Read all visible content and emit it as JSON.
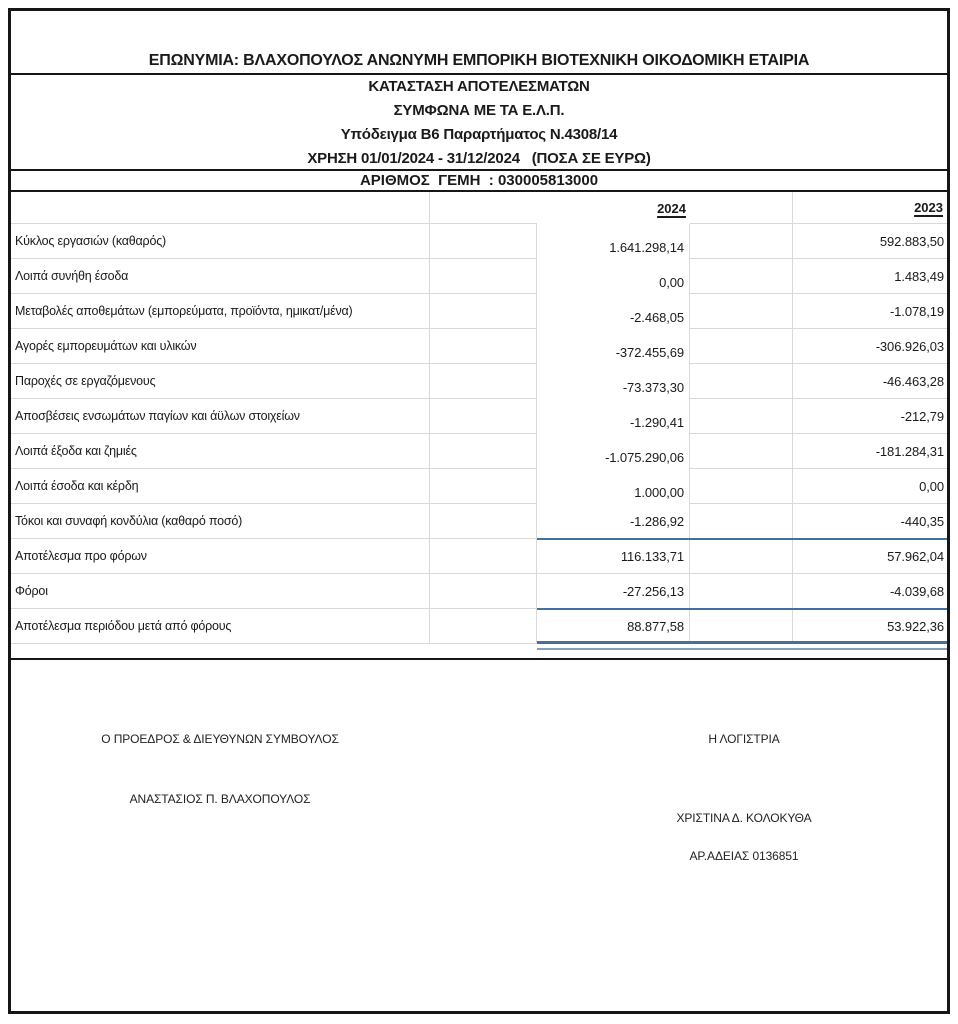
{
  "header": {
    "company": "ΕΠΩΝΥΜΙΑ: ΒΛΑΧΟΠΟΥΛΟΣ ΑΝΩΝΥΜΗ ΕΜΠΟΡΙΚΗ ΒΙΟΤΕΧΝΙΚΗ ΟΙΚΟΔΟΜΙΚΗ ΕΤΑΙΡΙΑ",
    "statement_title": "ΚΑΤΑΣΤΑΣΗ ΑΠΟΤΕΛΕΣΜΑΤΩΝ",
    "standard_line": "ΣΥΜΦΩΝΑ ΜΕ ΤΑ Ε.Λ.Π.",
    "template_line": "Υπόδειγμα Β6 Παραρτήματος Ν.4308/14",
    "period_line": "ΧΡΗΣΗ 01/01/2024 - 31/12/2024   (ΠΟΣΑ ΣΕ ΕΥΡΩ)",
    "gemi_line": "ΑΡΙΘΜΟΣ  ΓΕΜΗ  : 030005813000"
  },
  "table": {
    "year_columns": [
      "2024",
      "2023"
    ],
    "rows": [
      {
        "label": "Κύκλος εργασιών (καθαρός)",
        "v2024": "1.641.298,14",
        "v2023": "592.883,50",
        "offset2024": true,
        "rule": "none"
      },
      {
        "label": "Λοιπά συνήθη έσοδα",
        "v2024": "0,00",
        "v2023": "1.483,49",
        "offset2024": true,
        "rule": "none"
      },
      {
        "label": "Μεταβολές αποθεμάτων (εμπορεύματα, προϊόντα, ημικατ/μένα)",
        "v2024": "-2.468,05",
        "v2023": "-1.078,19",
        "offset2024": true,
        "rule": "none"
      },
      {
        "label": "Αγορές εμπορευμάτων και υλικών",
        "v2024": "-372.455,69",
        "v2023": "-306.926,03",
        "offset2024": true,
        "rule": "none"
      },
      {
        "label": "Παροχές σε εργαζόμενους",
        "v2024": "-73.373,30",
        "v2023": "-46.463,28",
        "offset2024": true,
        "rule": "none"
      },
      {
        "label": "Αποσβέσεις ενσωμάτων παγίων και άϋλων στοιχείων",
        "v2024": "-1.290,41",
        "v2023": "-212,79",
        "offset2024": true,
        "rule": "none"
      },
      {
        "label": "Λοιπά έξοδα και ζημιές",
        "v2024": "-1.075.290,06",
        "v2023": "-181.284,31",
        "offset2024": true,
        "rule": "none"
      },
      {
        "label": "Λοιπά έσοδα και κέρδη",
        "v2024": "1.000,00",
        "v2023": "0,00",
        "offset2024": true,
        "rule": "none"
      },
      {
        "label": "Τόκοι και συναφή κονδύλια (καθαρό ποσό)",
        "v2024": "-1.286,92",
        "v2023": "-440,35",
        "offset2024": false,
        "rule": "single"
      },
      {
        "label": "Αποτέλεσμα προ φόρων",
        "v2024": "116.133,71",
        "v2023": "57.962,04",
        "offset2024": false,
        "rule": "none"
      },
      {
        "label": "Φόροι",
        "v2024": "-27.256,13",
        "v2023": "-4.039,68",
        "offset2024": false,
        "rule": "single"
      },
      {
        "label": "Αποτέλεσμα περιόδου μετά από φόρους",
        "v2024": "88.877,58",
        "v2023": "53.922,36",
        "offset2024": false,
        "rule": "double"
      }
    ]
  },
  "signatures": {
    "president_title": "Ο ΠΡΟΕΔΡΟΣ & ΔΙΕΥΘΥΝΩΝ ΣΥΜΒΟΥΛΟΣ",
    "president_name": "ΑΝΑΣΤΑΣΙΟΣ Π. ΒΛΑΧΟΠΟΥΛΟΣ",
    "accountant_title": "Η ΛΟΓΙΣΤΡΙΑ",
    "accountant_name": "ΧΡΙΣΤΙΝΑ Δ. ΚΟΛΟΚΥΘΑ",
    "accountant_license": "ΑΡ.ΑΔΕΙΑΣ 0136851"
  },
  "colors": {
    "accent_blue": "#41719C",
    "accent_blue_light": "#7F9FBE",
    "gridline": "#D9D9D9",
    "frame_black": "#161616"
  }
}
